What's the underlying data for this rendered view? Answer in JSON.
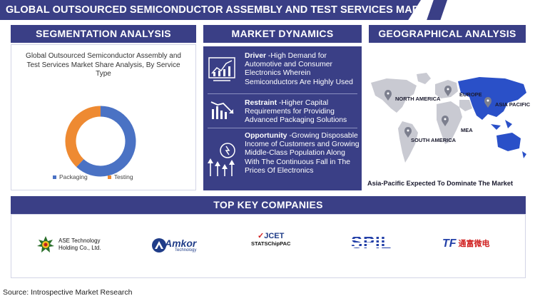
{
  "header": {
    "title": "GLOBAL OUTSOURCED SEMICONDUCTOR ASSEMBLY AND TEST SERVICES MARKET REPORT"
  },
  "segmentation": {
    "heading": "SEGMENTATION ANALYSIS",
    "chart_title": "Global Outsourced Semiconductor Assembly and Test Services Market Share Analysis, By Service Type",
    "legend": [
      {
        "label": "Packaging",
        "color": "#4a72c4"
      },
      {
        "label": "Testing",
        "color": "#ee8a32"
      }
    ]
  },
  "chart_data": {
    "type": "pie",
    "title": "Global Outsourced Semiconductor Assembly and Test Services Market Share Analysis, By Service Type",
    "categories": [
      "Packaging",
      "Testing"
    ],
    "values": [
      62,
      38
    ],
    "colors": [
      "#4a72c4",
      "#ee8a32"
    ],
    "donut": true,
    "legend_position": "bottom"
  },
  "dynamics": {
    "heading": "MARKET DYNAMICS",
    "items": [
      {
        "label": "Driver",
        "text": " -High Demand for Automotive and Consumer Electronics Wherein Semiconductors Are Highly Used",
        "icon": "growth-chart-icon"
      },
      {
        "label": "Restraint",
        "text": " -Higher Capital Requirements for Providing Advanced Packaging Solutions",
        "icon": "declining-chart-icon"
      },
      {
        "label": "Opportunity",
        "text": " -Growing Disposable Income of Customers and Growing Middle-Class Population Along With The Continuous Fall in The Prices Of Electronics",
        "icon": "idea-arrows-icon"
      }
    ]
  },
  "geography": {
    "heading": "GEOGRAPHICAL ANALYSIS",
    "regions": [
      "NORTH AMERICA",
      "EUROPE",
      "ASIA PACIFIC",
      "MEA",
      "SOUTH AMERICA"
    ],
    "highlight_color": "#2a50c8",
    "caption": "Asia-Pacific Expected To Dominate The Market"
  },
  "companies": {
    "heading": "TOP KEY COMPANIES",
    "logos": [
      {
        "name": "ASE Technology Holding Co., Ltd.",
        "line1": "ASE Technology",
        "line2": "Holding Co., Ltd."
      },
      {
        "name": "Amkor Technology",
        "line1": "Amkor",
        "line2": "Technology"
      },
      {
        "name": "JCET STATSChipPAC",
        "line1": "JCET",
        "line2": "STATSChipPAC"
      },
      {
        "name": "SPIL",
        "line1": "SPIL"
      },
      {
        "name": "TF",
        "line1": "TF",
        "line2": "通富微电"
      }
    ]
  },
  "source": "Source: Introspective Market Research"
}
